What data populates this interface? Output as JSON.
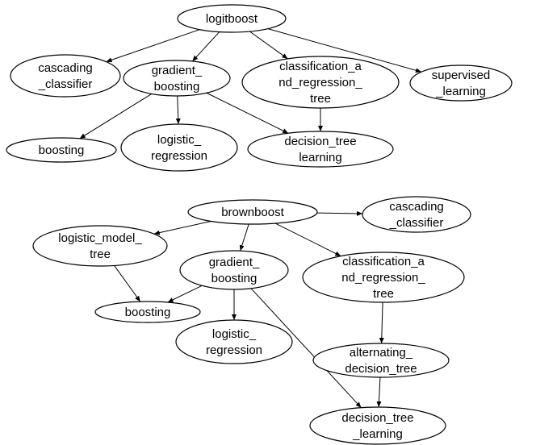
{
  "graphs": [
    {
      "nodes": [
        {
          "id": "g1-logitboost",
          "lines": [
            "logitboost"
          ]
        },
        {
          "id": "g1-cascading",
          "lines": [
            "cascading",
            "_classifier"
          ]
        },
        {
          "id": "g1-gradient",
          "lines": [
            "gradient_",
            "boosting"
          ]
        },
        {
          "id": "g1-cart",
          "lines": [
            "classification_a",
            "nd_regression_",
            "tree"
          ]
        },
        {
          "id": "g1-supervised",
          "lines": [
            "supervised",
            "_learning"
          ]
        },
        {
          "id": "g1-boosting",
          "lines": [
            "boosting"
          ]
        },
        {
          "id": "g1-logistic",
          "lines": [
            "logistic_",
            "regression"
          ]
        },
        {
          "id": "g1-dtl",
          "lines": [
            "decision_tree",
            "learning"
          ]
        }
      ],
      "edges": [
        [
          "g1-logitboost",
          "g1-cascading"
        ],
        [
          "g1-logitboost",
          "g1-gradient"
        ],
        [
          "g1-logitboost",
          "g1-cart"
        ],
        [
          "g1-logitboost",
          "g1-supervised"
        ],
        [
          "g1-gradient",
          "g1-boosting"
        ],
        [
          "g1-gradient",
          "g1-logistic"
        ],
        [
          "g1-gradient",
          "g1-dtl"
        ],
        [
          "g1-cart",
          "g1-dtl"
        ]
      ]
    },
    {
      "nodes": [
        {
          "id": "g2-brownboost",
          "lines": [
            "brownboost"
          ]
        },
        {
          "id": "g2-cascading",
          "lines": [
            "cascading",
            "_classifier"
          ]
        },
        {
          "id": "g2-lmt",
          "lines": [
            "logistic_model_",
            "tree"
          ]
        },
        {
          "id": "g2-gradient",
          "lines": [
            "gradient_",
            "boosting"
          ]
        },
        {
          "id": "g2-cart",
          "lines": [
            "classification_a",
            "nd_regression_",
            "tree"
          ]
        },
        {
          "id": "g2-boosting",
          "lines": [
            "boosting"
          ]
        },
        {
          "id": "g2-logistic",
          "lines": [
            "logistic_",
            "regression"
          ]
        },
        {
          "id": "g2-adt",
          "lines": [
            "alternating_",
            "decision_tree"
          ]
        },
        {
          "id": "g2-dtl",
          "lines": [
            "decision_tree",
            "_learning"
          ]
        }
      ],
      "edges": [
        [
          "g2-brownboost",
          "g2-cascading"
        ],
        [
          "g2-brownboost",
          "g2-lmt"
        ],
        [
          "g2-brownboost",
          "g2-gradient"
        ],
        [
          "g2-brownboost",
          "g2-cart"
        ],
        [
          "g2-lmt",
          "g2-boosting"
        ],
        [
          "g2-gradient",
          "g2-boosting"
        ],
        [
          "g2-gradient",
          "g2-logistic"
        ],
        [
          "g2-gradient",
          "g2-dtl"
        ],
        [
          "g2-cart",
          "g2-adt"
        ],
        [
          "g2-adt",
          "g2-dtl"
        ]
      ]
    }
  ]
}
